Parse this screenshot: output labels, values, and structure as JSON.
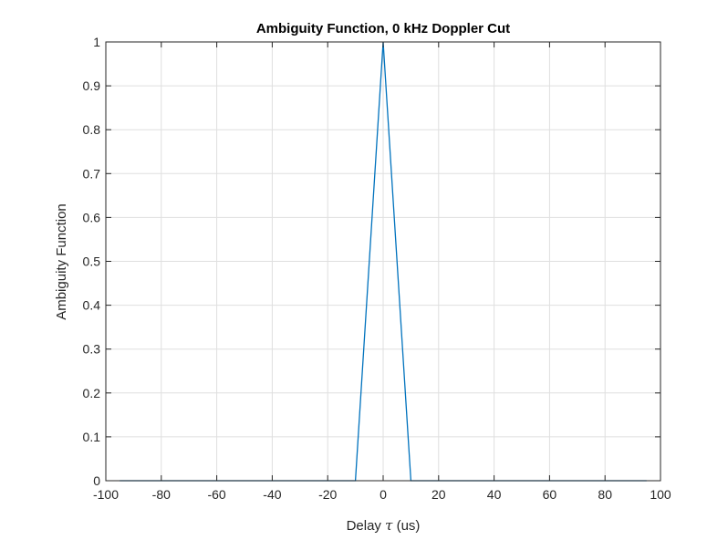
{
  "chart_data": {
    "type": "line",
    "title": "Ambiguity Function, 0 kHz Doppler Cut",
    "xlabel_prefix": "Delay ",
    "xlabel_symbol": "τ",
    "xlabel_suffix": " (us)",
    "ylabel": "Ambiguity Function",
    "xlim": [
      -100,
      100
    ],
    "ylim": [
      0,
      1
    ],
    "xticks": [
      -100,
      -80,
      -60,
      -40,
      -20,
      0,
      20,
      40,
      60,
      80,
      100
    ],
    "yticks": [
      0,
      0.1,
      0.2,
      0.3,
      0.4,
      0.5,
      0.6,
      0.7,
      0.8,
      0.9,
      1
    ],
    "xtick_labels": [
      "-100",
      "-80",
      "-60",
      "-40",
      "-20",
      "0",
      "20",
      "40",
      "60",
      "80",
      "100"
    ],
    "ytick_labels": [
      "0",
      "0.1",
      "0.2",
      "0.3",
      "0.4",
      "0.5",
      "0.6",
      "0.7",
      "0.8",
      "0.9",
      "1"
    ],
    "grid": true,
    "series": [
      {
        "color": "#0072BD",
        "x": [
          -95,
          -10,
          0,
          10,
          95
        ],
        "y": [
          0,
          0,
          1,
          0,
          0
        ]
      }
    ]
  }
}
